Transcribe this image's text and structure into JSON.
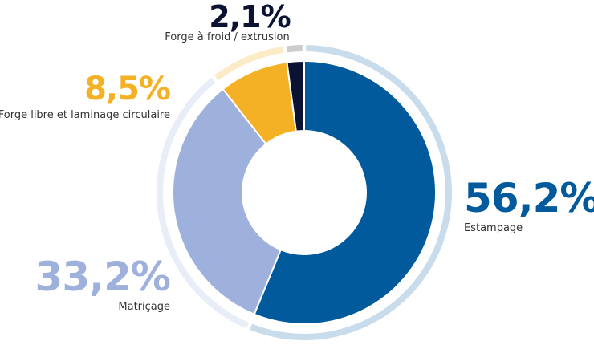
{
  "chart_data": {
    "type": "pie",
    "title": "",
    "legend": "none",
    "slices": [
      {
        "label": "Estampage",
        "display": "56,2%",
        "value": 56.2,
        "color": "#005a9c",
        "halo": "#c9dceb"
      },
      {
        "label": "Matriçage",
        "display": "33,2%",
        "value": 33.2,
        "color": "#9eb0dc",
        "halo": "#e8edf7"
      },
      {
        "label": "Forge libre et laminage circulaire",
        "display": "8,5%",
        "value": 8.5,
        "color": "#f5b126",
        "halo": "#fcebc7"
      },
      {
        "label": "Forge à froid / extrusion",
        "display": "2,1%",
        "value": 2.1,
        "color": "#0b1232",
        "halo": "#cccccc"
      }
    ]
  }
}
